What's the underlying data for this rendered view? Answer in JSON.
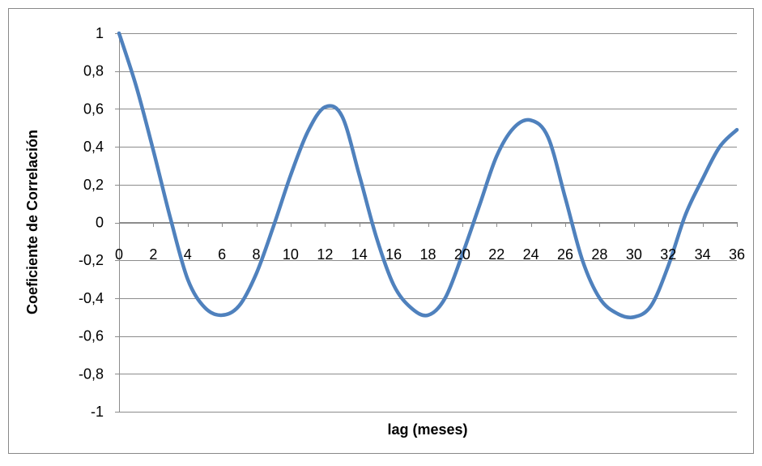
{
  "chart_data": {
    "type": "line",
    "title": "",
    "xlabel": "lag (meses)",
    "ylabel": "Coeficiente de Correlación",
    "xlim": [
      0,
      36
    ],
    "ylim": [
      -1,
      1
    ],
    "x_ticks": [
      0,
      2,
      4,
      6,
      8,
      10,
      12,
      14,
      16,
      18,
      20,
      22,
      24,
      26,
      28,
      30,
      32,
      34,
      36
    ],
    "x_tick_labels": [
      "0",
      "2",
      "4",
      "6",
      "8",
      "10",
      "12",
      "14",
      "16",
      "18",
      "20",
      "22",
      "24",
      "26",
      "28",
      "30",
      "32",
      "34",
      "36"
    ],
    "y_ticks": [
      1,
      0.8,
      0.6,
      0.4,
      0.2,
      0,
      -0.2,
      -0.4,
      -0.6,
      -0.8,
      -1
    ],
    "y_tick_labels": [
      "1",
      "0,8",
      "0,6",
      "0,4",
      "0,2",
      "0",
      "-0,2",
      "-0,4",
      "-0,6",
      "-0,8",
      "-1"
    ],
    "grid": "horizontal",
    "legend": "none",
    "series": [
      {
        "color": "#4f81bd",
        "x": [
          0,
          1,
          2,
          3,
          4,
          5,
          6,
          7,
          8,
          9,
          10,
          11,
          12,
          13,
          14,
          15,
          16,
          17,
          18,
          19,
          20,
          21,
          22,
          23,
          24,
          25,
          26,
          27,
          28,
          29,
          30,
          31,
          32,
          33,
          34,
          35,
          36
        ],
        "values": [
          1,
          0.72,
          0.38,
          0.02,
          -0.3,
          -0.45,
          -0.49,
          -0.44,
          -0.27,
          -0.02,
          0.25,
          0.48,
          0.61,
          0.56,
          0.25,
          -0.08,
          -0.33,
          -0.45,
          -0.49,
          -0.4,
          -0.17,
          0.09,
          0.35,
          0.5,
          0.54,
          0.45,
          0.13,
          -0.2,
          -0.4,
          -0.48,
          -0.5,
          -0.44,
          -0.23,
          0.04,
          0.23,
          0.4,
          0.49
        ]
      }
    ]
  }
}
